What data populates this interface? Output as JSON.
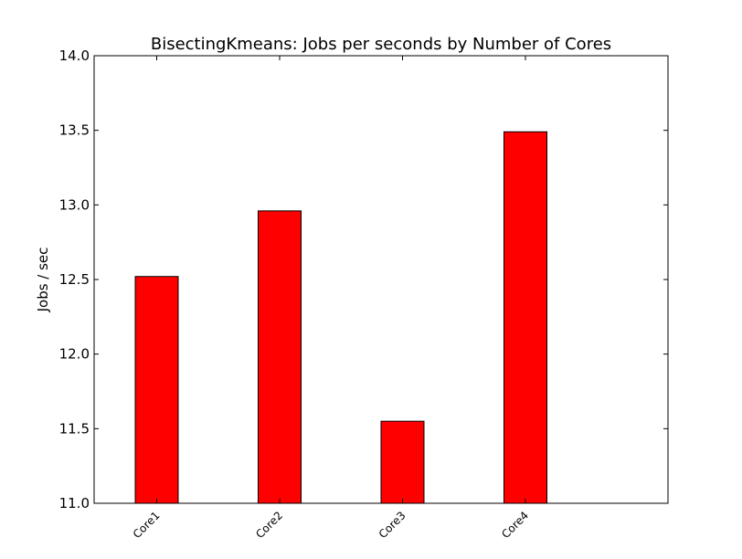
{
  "chart_data": {
    "type": "bar",
    "title": "BisectingKmeans: Jobs per seconds by Number of Cores",
    "xlabel": "",
    "ylabel": "Jobs / sec",
    "categories": [
      "Core1",
      "Core2",
      "Core3",
      "Core4"
    ],
    "values": [
      12.52,
      12.96,
      11.55,
      13.49
    ],
    "ylim": [
      11.0,
      14.0
    ],
    "yticks": [
      "11.0",
      "11.5",
      "12.0",
      "12.5",
      "13.0",
      "13.5",
      "14.0"
    ],
    "bar_color": "#ff0000",
    "edge_color": "#000000",
    "grid": false,
    "legend": "none"
  }
}
